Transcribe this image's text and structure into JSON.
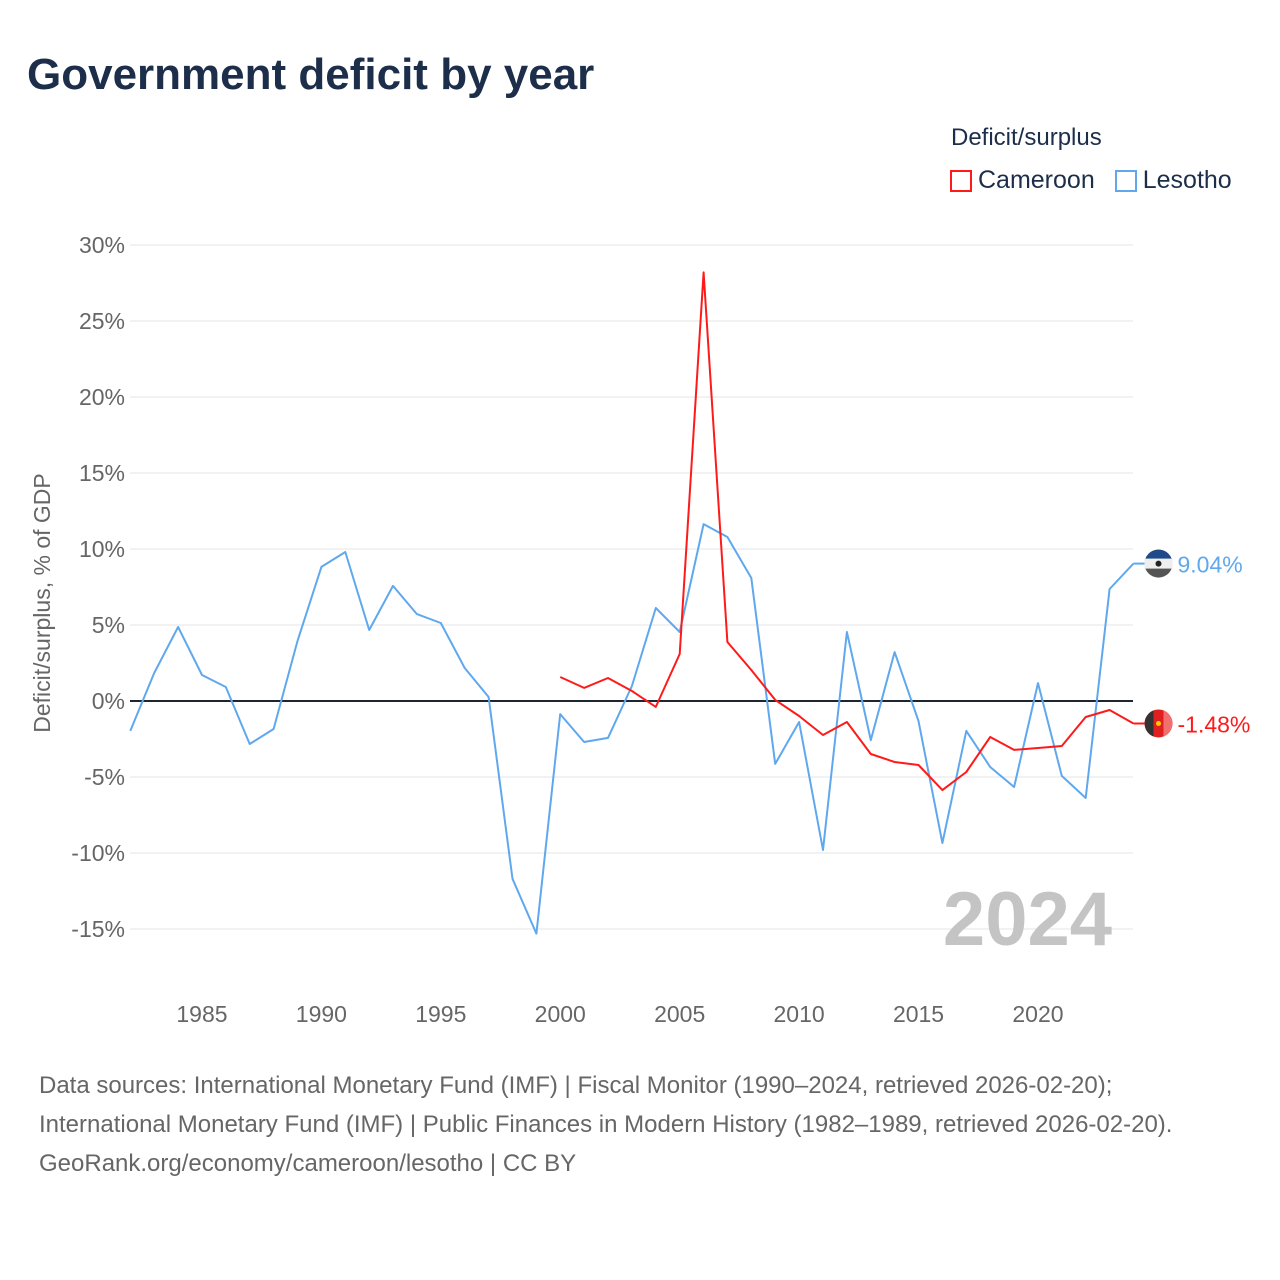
{
  "title": "Government deficit by year",
  "legend": {
    "title": "Deficit/surplus",
    "items": [
      {
        "label": "Cameroon",
        "color": "#ff1a1a"
      },
      {
        "label": "Lesotho",
        "color": "#5fa8ee"
      }
    ]
  },
  "year_watermark": "2024",
  "chart_data": {
    "type": "line",
    "title": "Government deficit by year",
    "xlabel": "",
    "ylabel": "Deficit/surplus, % of GDP",
    "xlim": [
      1982,
      2024
    ],
    "ylim": [
      -15,
      30
    ],
    "xticks": [
      1985,
      1990,
      1995,
      2000,
      2005,
      2010,
      2015,
      2020
    ],
    "yticks": [
      30,
      25,
      20,
      15,
      10,
      5,
      0,
      -5,
      -10,
      -15
    ],
    "ytick_labels": [
      "30%",
      "25%",
      "20%",
      "15%",
      "10%",
      "5%",
      "0%",
      "-5%",
      "-10%",
      "-15%"
    ],
    "grid": true,
    "legend_position": "top-right",
    "series": [
      {
        "name": "Cameroon",
        "color": "#ff1a1a",
        "end_label": "-1.48%",
        "x": [
          2000,
          2001,
          2002,
          2003,
          2004,
          2005,
          2006,
          2007,
          2008,
          2009,
          2010,
          2011,
          2012,
          2013,
          2014,
          2015,
          2016,
          2017,
          2018,
          2019,
          2020,
          2021,
          2022,
          2023,
          2024
        ],
        "values": [
          1.58,
          0.86,
          1.51,
          0.66,
          -0.39,
          3.09,
          28.2,
          3.88,
          2.04,
          0.07,
          -0.99,
          -2.24,
          -1.38,
          -3.49,
          -4.01,
          -4.21,
          -5.86,
          -4.67,
          -2.37,
          -3.22,
          -3.09,
          -2.96,
          -1.05,
          -0.59,
          -1.48
        ]
      },
      {
        "name": "Lesotho",
        "color": "#5fa8ee",
        "end_label": "9.04%",
        "x": [
          1982,
          1983,
          1984,
          1985,
          1986,
          1987,
          1988,
          1989,
          1990,
          1991,
          1992,
          1993,
          1994,
          1995,
          1996,
          1997,
          1998,
          1999,
          2000,
          2001,
          2002,
          2003,
          2004,
          2005,
          2006,
          2007,
          2008,
          2009,
          2010,
          2011,
          2012,
          2013,
          2014,
          2015,
          2016,
          2017,
          2018,
          2019,
          2020,
          2021,
          2022,
          2023,
          2024
        ],
        "values": [
          -1.97,
          1.84,
          4.87,
          1.71,
          0.92,
          -2.83,
          -1.84,
          3.95,
          8.82,
          9.8,
          4.67,
          7.57,
          5.72,
          5.13,
          2.17,
          0.26,
          -11.7,
          -15.3,
          -0.86,
          -2.7,
          -2.43,
          0.99,
          6.12,
          4.54,
          11.64,
          10.79,
          8.09,
          -4.14,
          -1.38,
          -9.8,
          4.54,
          -2.57,
          3.22,
          -1.32,
          -9.34,
          -1.97,
          -4.34,
          -5.66,
          1.18,
          -4.93,
          -6.38,
          7.37,
          9.04
        ]
      }
    ]
  },
  "footer": {
    "sources": "Data sources: International Monetary Fund (IMF) | Fiscal Monitor (1990–2024, retrieved 2026-02-20); International Monetary Fund (IMF) | Public Finances in Modern History (1982–1989, retrieved 2026-02-20).",
    "attribution": "GeoRank.org/economy/cameroon/lesotho | CC BY"
  }
}
